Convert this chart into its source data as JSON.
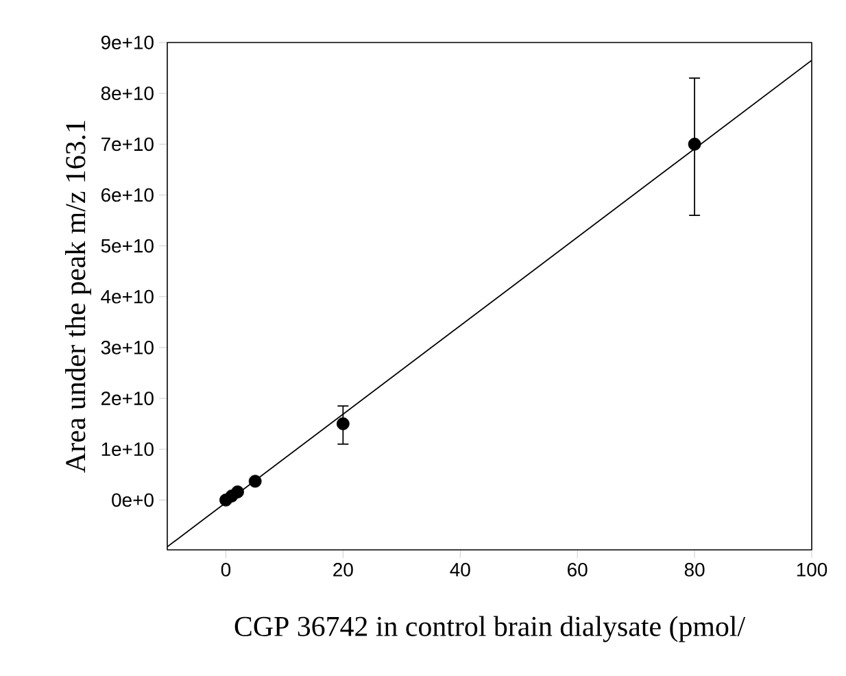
{
  "chart_data": {
    "type": "scatter",
    "xlabel": "CGP 36742 in control brain dialysate (pmol/",
    "ylabel": "Area under the peak m/z 163.1",
    "xlim": [
      -10,
      100
    ],
    "xticks": [
      0,
      20,
      40,
      60,
      80,
      100
    ],
    "ylim": [
      -9800000000,
      90000000000
    ],
    "yticks": [
      {
        "value": 0,
        "label": "0e+0"
      },
      {
        "value": 10000000000,
        "label": "1e+10"
      },
      {
        "value": 20000000000,
        "label": "2e+10"
      },
      {
        "value": 30000000000,
        "label": "3e+10"
      },
      {
        "value": 40000000000,
        "label": "4e+10"
      },
      {
        "value": 50000000000,
        "label": "5e+10"
      },
      {
        "value": 60000000000,
        "label": "6e+10"
      },
      {
        "value": 70000000000,
        "label": "7e+10"
      },
      {
        "value": 80000000000,
        "label": "8e+10"
      },
      {
        "value": 90000000000,
        "label": "9e+10"
      }
    ],
    "grid": false,
    "series": [
      {
        "type": "scatter",
        "marker": "circle",
        "color": "#000000",
        "x": [
          0,
          1,
          2,
          5,
          20,
          80
        ],
        "values": [
          0,
          800000000,
          1600000000,
          3700000000,
          15000000000,
          70000000000
        ],
        "errors": [
          null,
          null,
          null,
          null,
          [
            11000000000,
            18500000000
          ],
          [
            56000000000,
            83000000000
          ]
        ]
      },
      {
        "type": "line",
        "color": "#000000",
        "line_style": "solid",
        "marker": "none",
        "x": [
          -10,
          100
        ],
        "values": [
          -9200000000,
          86500000000
        ]
      }
    ]
  }
}
